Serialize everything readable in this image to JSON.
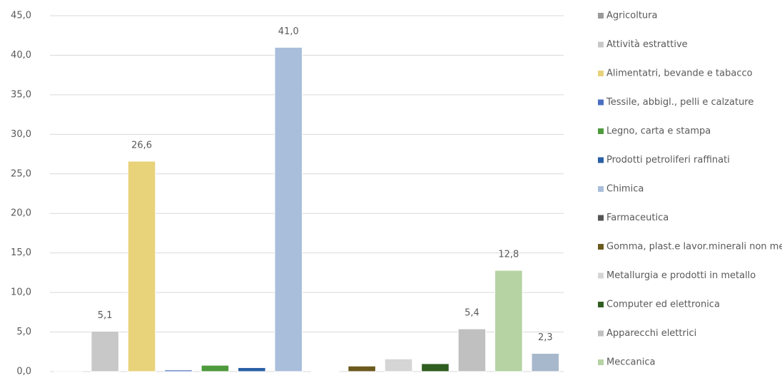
{
  "chart_data": {
    "type": "bar",
    "categories": [
      "Agricoltura",
      "Attività estrattive",
      "Alimentatri, bevande e tabacco",
      "Tessile, abbigl., pelli e calzature",
      "Legno, carta e stampa",
      "Prodotti petroliferi raffinati",
      "Chimica",
      "Farmaceutica",
      "Gomma, plast.e lavor.minerali non met.",
      "Metallurgia e prodotti in metallo",
      "Computer ed elettronica",
      "Apparecchi elettrici",
      "Meccanica",
      null
    ],
    "values": [
      0.1,
      5.1,
      26.6,
      0.2,
      0.8,
      0.5,
      41.0,
      0.0,
      0.7,
      1.6,
      1.0,
      5.4,
      12.8,
      2.3
    ],
    "value_labels": [
      null,
      "5,1",
      "26,6",
      null,
      null,
      null,
      "41,0",
      null,
      null,
      null,
      null,
      "5,4",
      "12,8",
      "2,3"
    ],
    "colors": [
      "#9a9a9a",
      "#c8c8c8",
      "#e8d27a",
      "#4a6fc0",
      "#4e9a3c",
      "#2a5fa5",
      "#a9bedb",
      "#555555",
      "#6b5a1e",
      "#d5d5d5",
      "#2f5e20",
      "#c0c0c0",
      "#b5d3a3",
      "#a8b8cc"
    ],
    "ylim": [
      0,
      45
    ],
    "yticks": [
      {
        "value": 0,
        "label": "0,0"
      },
      {
        "value": 5,
        "label": "5,0"
      },
      {
        "value": 10,
        "label": "10,0"
      },
      {
        "value": 15,
        "label": "15,0"
      },
      {
        "value": 20,
        "label": "20,0"
      },
      {
        "value": 25,
        "label": "25,0"
      },
      {
        "value": 30,
        "label": "30,0"
      },
      {
        "value": 35,
        "label": "35,0"
      },
      {
        "value": 40,
        "label": "40,0"
      },
      {
        "value": 45,
        "label": "45,0"
      }
    ],
    "grid": true,
    "legend": "right"
  }
}
